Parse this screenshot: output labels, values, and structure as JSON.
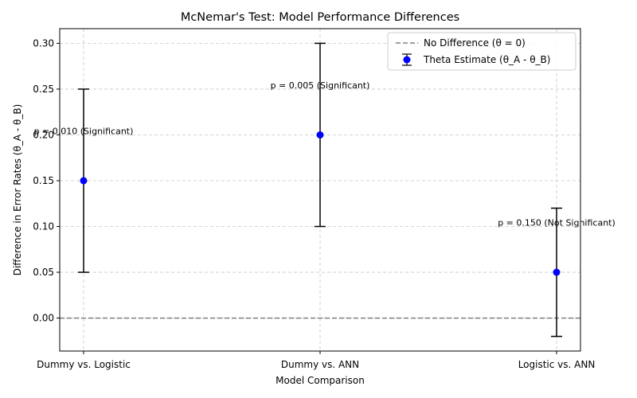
{
  "chart_data": {
    "type": "scatter",
    "title": "McNemar's Test: Model Performance Differences",
    "xlabel": "Model Comparison",
    "ylabel": "Difference in Error Rates (θ_A - θ_B)",
    "categories": [
      "Dummy vs. Logistic",
      "Dummy vs. ANN",
      "Logistic vs. ANN"
    ],
    "series": [
      {
        "name": "Theta Estimate (θ_A - θ_B)",
        "color": "#0000ff",
        "values": [
          0.15,
          0.2,
          0.05
        ],
        "err_low": [
          0.05,
          0.1,
          -0.02
        ],
        "err_high": [
          0.25,
          0.3,
          0.12
        ]
      }
    ],
    "reference_line": {
      "name": "No Difference (θ = 0)",
      "y": 0.0,
      "color": "#808080",
      "style": "dashed"
    },
    "annotations": [
      {
        "text": "p = 0.010 (Significant)",
        "x": 0,
        "y": 0.2
      },
      {
        "text": "p = 0.005 (Significant)",
        "x": 1,
        "y": 0.25
      },
      {
        "text": "p = 0.150 (Not Significant)",
        "x": 2,
        "y": 0.1
      }
    ],
    "yticks": [
      "0.00",
      "0.05",
      "0.10",
      "0.15",
      "0.20",
      "0.25",
      "0.30"
    ],
    "ylim": [
      -0.036,
      0.316
    ],
    "grid": true,
    "legend_position": "top-right"
  }
}
